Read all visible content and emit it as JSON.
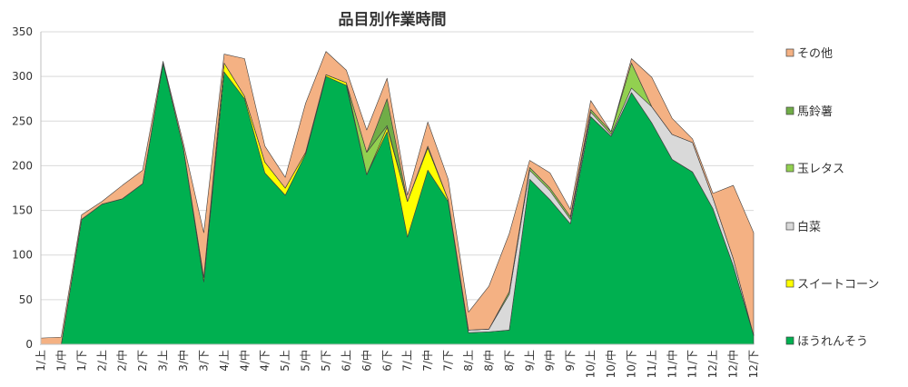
{
  "chart_data": {
    "type": "area",
    "stacked": true,
    "title": "品目別作業時間",
    "xlabel": "",
    "ylabel": "",
    "ylim": [
      0,
      350
    ],
    "yticks": [
      0,
      50,
      100,
      150,
      200,
      250,
      300,
      350
    ],
    "grid": true,
    "legend_position": "right",
    "categories": [
      "1/上",
      "1/中",
      "1/下",
      "2/上",
      "2/中",
      "2/下",
      "3/上",
      "3/中",
      "3/下",
      "4/上",
      "4/中",
      "4/下",
      "5/上",
      "5/中",
      "5/下",
      "6/上",
      "6/中",
      "6/下",
      "7/上",
      "7/中",
      "7/下",
      "8/上",
      "8/中",
      "8/下",
      "9/上",
      "9/中",
      "9/下",
      "10/上",
      "10/中",
      "10/下",
      "11/上",
      "11/中",
      "11/下",
      "12/上",
      "12/中",
      "12/下"
    ],
    "series": [
      {
        "name": "ほうれんそう",
        "color": "#00b050",
        "values": [
          0,
          0,
          140,
          157,
          163,
          180,
          315,
          220,
          70,
          305,
          275,
          192,
          167,
          213,
          300,
          290,
          190,
          238,
          120,
          195,
          160,
          13,
          14,
          16,
          185,
          162,
          135,
          255,
          233,
          282,
          248,
          207,
          193,
          152,
          88,
          10
        ]
      },
      {
        "name": "スイートコーン",
        "color": "#ffff00",
        "values": [
          0,
          0,
          0,
          0,
          0,
          0,
          0,
          0,
          5,
          10,
          3,
          12,
          8,
          2,
          2,
          3,
          0,
          5,
          40,
          25,
          2,
          0,
          0,
          0,
          0,
          0,
          0,
          0,
          0,
          0,
          0,
          0,
          0,
          0,
          0,
          0
        ]
      },
      {
        "name": "白菜",
        "color": "#d9d9d9",
        "values": [
          0,
          0,
          0,
          0,
          0,
          0,
          0,
          0,
          0,
          0,
          0,
          0,
          0,
          0,
          0,
          0,
          0,
          0,
          0,
          0,
          0,
          3,
          3,
          40,
          10,
          10,
          5,
          5,
          2,
          5,
          18,
          28,
          33,
          12,
          8,
          0
        ]
      },
      {
        "name": "玉レタス",
        "color": "#92d050",
        "values": [
          0,
          0,
          0,
          0,
          0,
          0,
          0,
          0,
          0,
          0,
          0,
          0,
          0,
          0,
          0,
          0,
          25,
          2,
          0,
          2,
          0,
          0,
          0,
          3,
          3,
          3,
          3,
          3,
          3,
          28,
          0,
          0,
          0,
          0,
          0,
          0
        ]
      },
      {
        "name": "馬鈴薯",
        "color": "#70ad47",
        "values": [
          0,
          0,
          0,
          0,
          0,
          0,
          0,
          0,
          0,
          0,
          0,
          0,
          0,
          0,
          0,
          0,
          0,
          30,
          0,
          0,
          0,
          0,
          0,
          0,
          0,
          0,
          0,
          0,
          0,
          0,
          0,
          0,
          0,
          0,
          0,
          0
        ]
      },
      {
        "name": "その他",
        "color": "#f4b183",
        "values": [
          7,
          8,
          5,
          3,
          15,
          15,
          2,
          5,
          50,
          10,
          42,
          18,
          12,
          55,
          26,
          14,
          25,
          23,
          7,
          27,
          23,
          20,
          48,
          65,
          8,
          17,
          8,
          10,
          0,
          5,
          33,
          18,
          4,
          5,
          82,
          115
        ]
      }
    ]
  }
}
